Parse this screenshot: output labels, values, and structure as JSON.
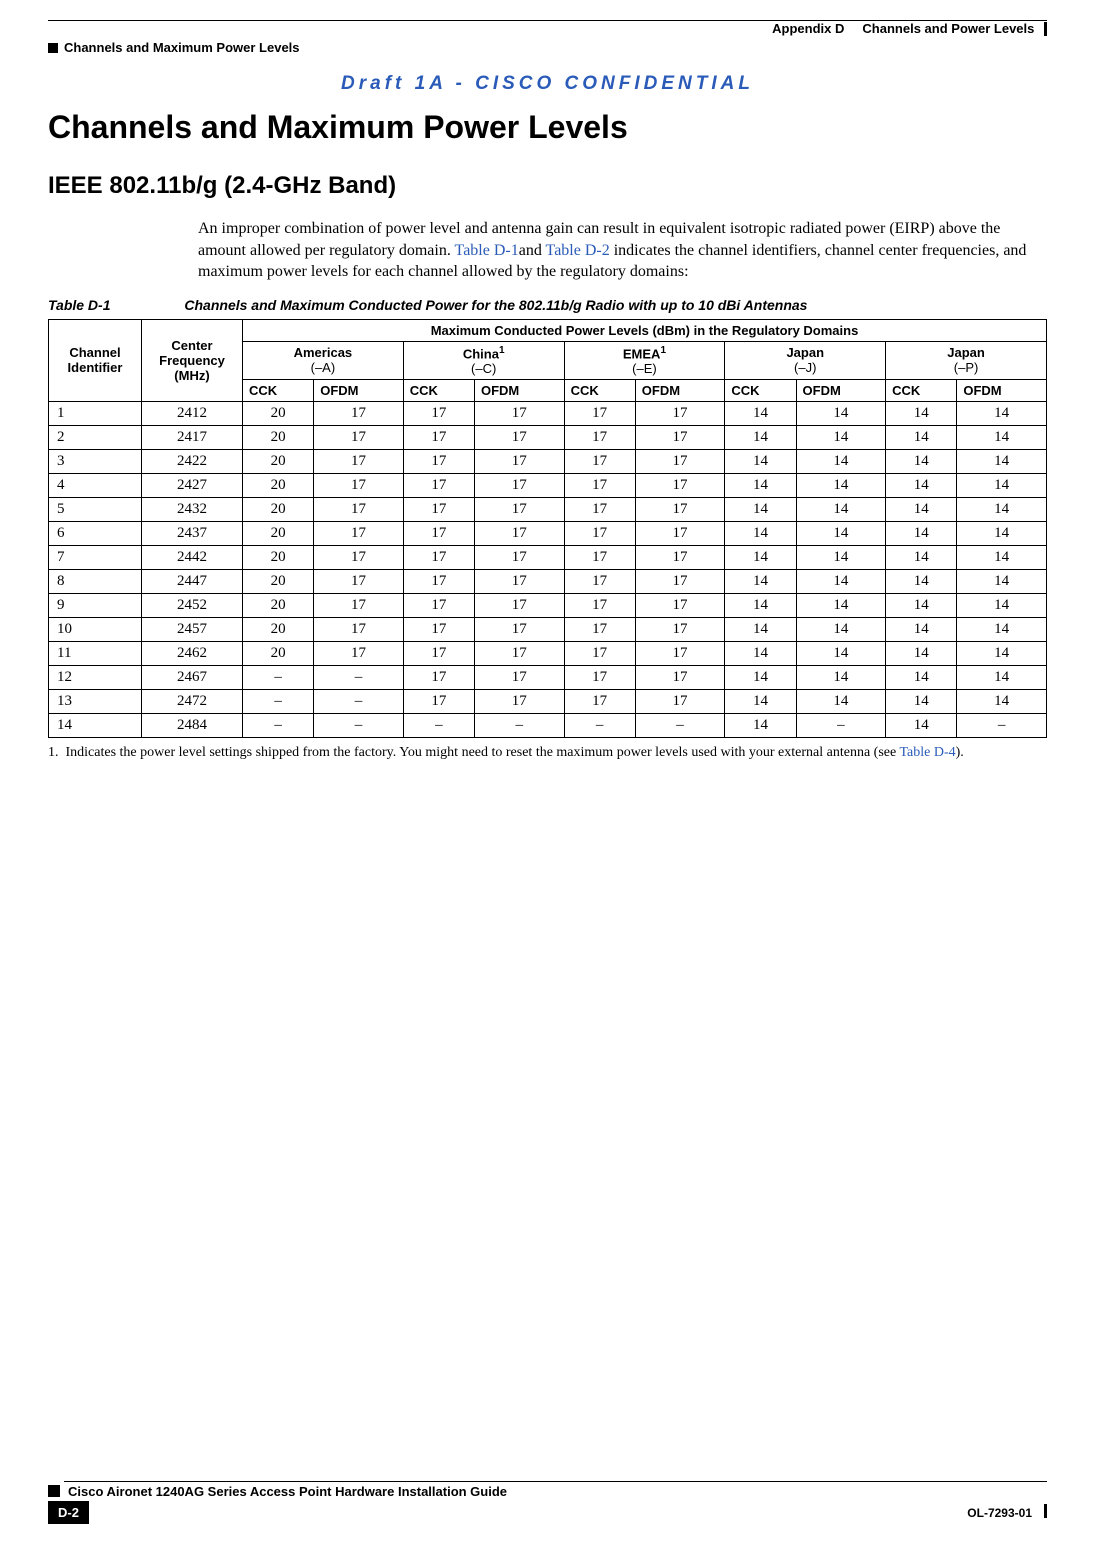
{
  "header": {
    "appendix": "Appendix D",
    "appendix_title": "Channels and Power Levels",
    "section_title": "Channels and Maximum Power Levels"
  },
  "confidential": "Draft 1A - CISCO CONFIDENTIAL",
  "title": "Channels and Maximum Power Levels",
  "subheading": "IEEE 802.11b/g (2.4-GHz Band)",
  "paragraph": {
    "pre": "An improper combination of power level and antenna gain can result in equivalent isotropic radiated power (EIRP) above the amount allowed per regulatory domain. ",
    "link1": "Table D-1",
    "mid": "and ",
    "link2": "Table D-2",
    "post": " indicates the channel identifiers, channel center frequencies, and maximum power levels for each channel allowed by the regulatory domains:"
  },
  "table": {
    "caption_label": "Table D-1",
    "caption_text": "Channels and Maximum Conducted Power for the 802.11b/g Radio with up to 10 dBi Antennas",
    "header_top": "Maximum Conducted Power Levels (dBm) in the Regulatory Domains",
    "col_channel": "Channel Identifier",
    "col_freq": "Center Frequency (MHz)",
    "regions": [
      {
        "name": "Americas",
        "sub": "(–A)",
        "note": ""
      },
      {
        "name": "China",
        "sub": "(–C)",
        "note": "1"
      },
      {
        "name": "EMEA",
        "sub": "(–E)",
        "note": "1"
      },
      {
        "name": "Japan",
        "sub": "(–J)",
        "note": ""
      },
      {
        "name": "Japan",
        "sub": "(–P)",
        "note": ""
      }
    ],
    "subcols": [
      "CCK",
      "OFDM"
    ],
    "rows": [
      [
        "1",
        "2412",
        "20",
        "17",
        "17",
        "17",
        "17",
        "17",
        "14",
        "14",
        "14",
        "14"
      ],
      [
        "2",
        "2417",
        "20",
        "17",
        "17",
        "17",
        "17",
        "17",
        "14",
        "14",
        "14",
        "14"
      ],
      [
        "3",
        "2422",
        "20",
        "17",
        "17",
        "17",
        "17",
        "17",
        "14",
        "14",
        "14",
        "14"
      ],
      [
        "4",
        "2427",
        "20",
        "17",
        "17",
        "17",
        "17",
        "17",
        "14",
        "14",
        "14",
        "14"
      ],
      [
        "5",
        "2432",
        "20",
        "17",
        "17",
        "17",
        "17",
        "17",
        "14",
        "14",
        "14",
        "14"
      ],
      [
        "6",
        "2437",
        "20",
        "17",
        "17",
        "17",
        "17",
        "17",
        "14",
        "14",
        "14",
        "14"
      ],
      [
        "7",
        "2442",
        "20",
        "17",
        "17",
        "17",
        "17",
        "17",
        "14",
        "14",
        "14",
        "14"
      ],
      [
        "8",
        "2447",
        "20",
        "17",
        "17",
        "17",
        "17",
        "17",
        "14",
        "14",
        "14",
        "14"
      ],
      [
        "9",
        "2452",
        "20",
        "17",
        "17",
        "17",
        "17",
        "17",
        "14",
        "14",
        "14",
        "14"
      ],
      [
        "10",
        "2457",
        "20",
        "17",
        "17",
        "17",
        "17",
        "17",
        "14",
        "14",
        "14",
        "14"
      ],
      [
        "11",
        "2462",
        "20",
        "17",
        "17",
        "17",
        "17",
        "17",
        "14",
        "14",
        "14",
        "14"
      ],
      [
        "12",
        "2467",
        "–",
        "–",
        "17",
        "17",
        "17",
        "17",
        "14",
        "14",
        "14",
        "14"
      ],
      [
        "13",
        "2472",
        "–",
        "–",
        "17",
        "17",
        "17",
        "17",
        "14",
        "14",
        "14",
        "14"
      ],
      [
        "14",
        "2484",
        "–",
        "–",
        "–",
        "–",
        "–",
        "–",
        "14",
        "–",
        "14",
        "–"
      ]
    ],
    "colors": {
      "border": "#000000",
      "link": "#2a5bb8",
      "background": "#ffffff"
    },
    "font": {
      "header_family": "Arial",
      "body_family": "Times New Roman",
      "header_size_pt": 10,
      "body_size_pt": 11
    }
  },
  "footnote": {
    "num": "1.",
    "text_pre": "Indicates the power level settings shipped from the factory. You might need to reset the maximum power levels used with your external antenna (see ",
    "link": "Table D-4",
    "text_post": ")."
  },
  "footer": {
    "guide_title": "Cisco Aironet 1240AG Series Access Point Hardware Installation Guide",
    "page_number": "D-2",
    "doc_id": "OL-7293-01"
  }
}
